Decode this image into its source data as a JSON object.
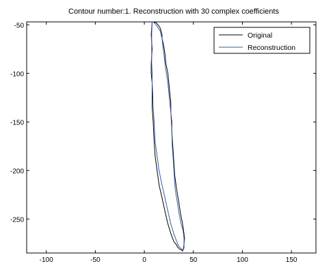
{
  "chart_data": {
    "type": "line",
    "title": "Contour number:1. Reconstruction with 30 complex coefficients",
    "xlabel": "",
    "ylabel": "",
    "xlim": [
      -120,
      175
    ],
    "ylim": [
      -285,
      -47
    ],
    "xticks": [
      -100,
      -50,
      0,
      50,
      100,
      150
    ],
    "xtick_labels": [
      "-100",
      "-50",
      "0",
      "50",
      "100",
      "150"
    ],
    "yticks": [
      -50,
      -100,
      -150,
      -200,
      -250
    ],
    "ytick_labels": [
      "-50",
      "-100",
      "-150",
      "-200",
      "-250"
    ],
    "grid": false,
    "legend": {
      "position": "top-right",
      "entries": [
        "Original",
        "Reconstruction"
      ]
    },
    "series": [
      {
        "name": "Original",
        "color": "#000000",
        "x": [
          8,
          7,
          8,
          7,
          7,
          8,
          8,
          8,
          9,
          10,
          11,
          13,
          15,
          18,
          21,
          24,
          27,
          30,
          33,
          34,
          36,
          38,
          39,
          40,
          41,
          40,
          39,
          37,
          35,
          33,
          31,
          30,
          29,
          28,
          28,
          27,
          27,
          26,
          25,
          24,
          22,
          21,
          20,
          19,
          18,
          18,
          17,
          16,
          14,
          12,
          9
        ],
        "y": [
          -47,
          -60,
          -75,
          -90,
          -100,
          -110,
          -120,
          -135,
          -150,
          -170,
          -185,
          -200,
          -215,
          -228,
          -242,
          -255,
          -265,
          -273,
          -277,
          -279,
          -281,
          -282,
          -283,
          -280,
          -270,
          -262,
          -255,
          -245,
          -232,
          -220,
          -205,
          -190,
          -175,
          -160,
          -150,
          -140,
          -130,
          -120,
          -110,
          -100,
          -90,
          -80,
          -73,
          -68,
          -64,
          -60,
          -56,
          -53,
          -50,
          -48,
          -47
        ]
      },
      {
        "name": "Reconstruction",
        "color": "#3b5aa3",
        "x": [
          8,
          7.5,
          7.5,
          7.5,
          8,
          8,
          8.5,
          9,
          10,
          11,
          13,
          15,
          18,
          21,
          24,
          27,
          30,
          33,
          34.5,
          36,
          38,
          39.5,
          40.5,
          40.5,
          39.5,
          37.5,
          35.5,
          33.5,
          31.5,
          30.5,
          29.5,
          28.5,
          28,
          27.5,
          27,
          26,
          25,
          24,
          22.5,
          21,
          20,
          19,
          18.5,
          18,
          17,
          16,
          14,
          12,
          9
        ],
        "y": [
          -47,
          -60,
          -75,
          -90,
          -100,
          -110,
          -120,
          -135,
          -150,
          -170,
          -185,
          -200,
          -215,
          -228,
          -242,
          -255,
          -265,
          -273,
          -277,
          -279,
          -281,
          -282,
          -280,
          -270,
          -262,
          -255,
          -245,
          -232,
          -220,
          -205,
          -190,
          -175,
          -160,
          -150,
          -140,
          -130,
          -120,
          -110,
          -100,
          -90,
          -80,
          -73,
          -68,
          -64,
          -60,
          -56,
          -53,
          -50,
          -47
        ]
      }
    ]
  }
}
